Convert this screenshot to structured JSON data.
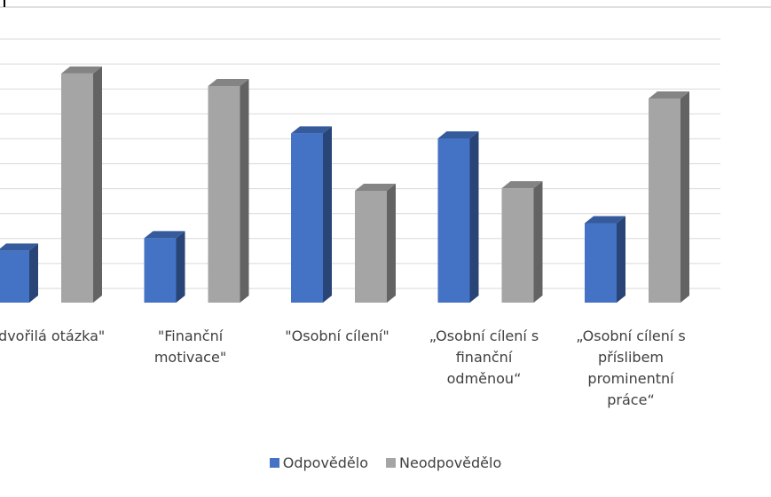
{
  "chart_data": {
    "type": "bar3d",
    "categories": [
      "\"Zdvořilá otázka\"",
      "\"Finanční motivace\"",
      "\"Osobní cílení\"",
      "„Osobní cílení s finanční odměnou“",
      "„Osobní cílení s příslibem prominentní práce“"
    ],
    "series": [
      {
        "name": "Odpovědělo",
        "color": "#4472c4",
        "values": [
          1.8,
          2.3,
          6.5,
          6.3,
          2.9
        ]
      },
      {
        "name": "Neodpovědělo",
        "color": "#a5a5a5",
        "values": [
          8.9,
          8.4,
          4.2,
          4.3,
          7.9
        ]
      }
    ],
    "ylim": [
      0,
      10
    ],
    "yticks": [
      0,
      1,
      2,
      3,
      4,
      5,
      6,
      7,
      8,
      9,
      10
    ],
    "grid": true,
    "legend": "bottom"
  }
}
